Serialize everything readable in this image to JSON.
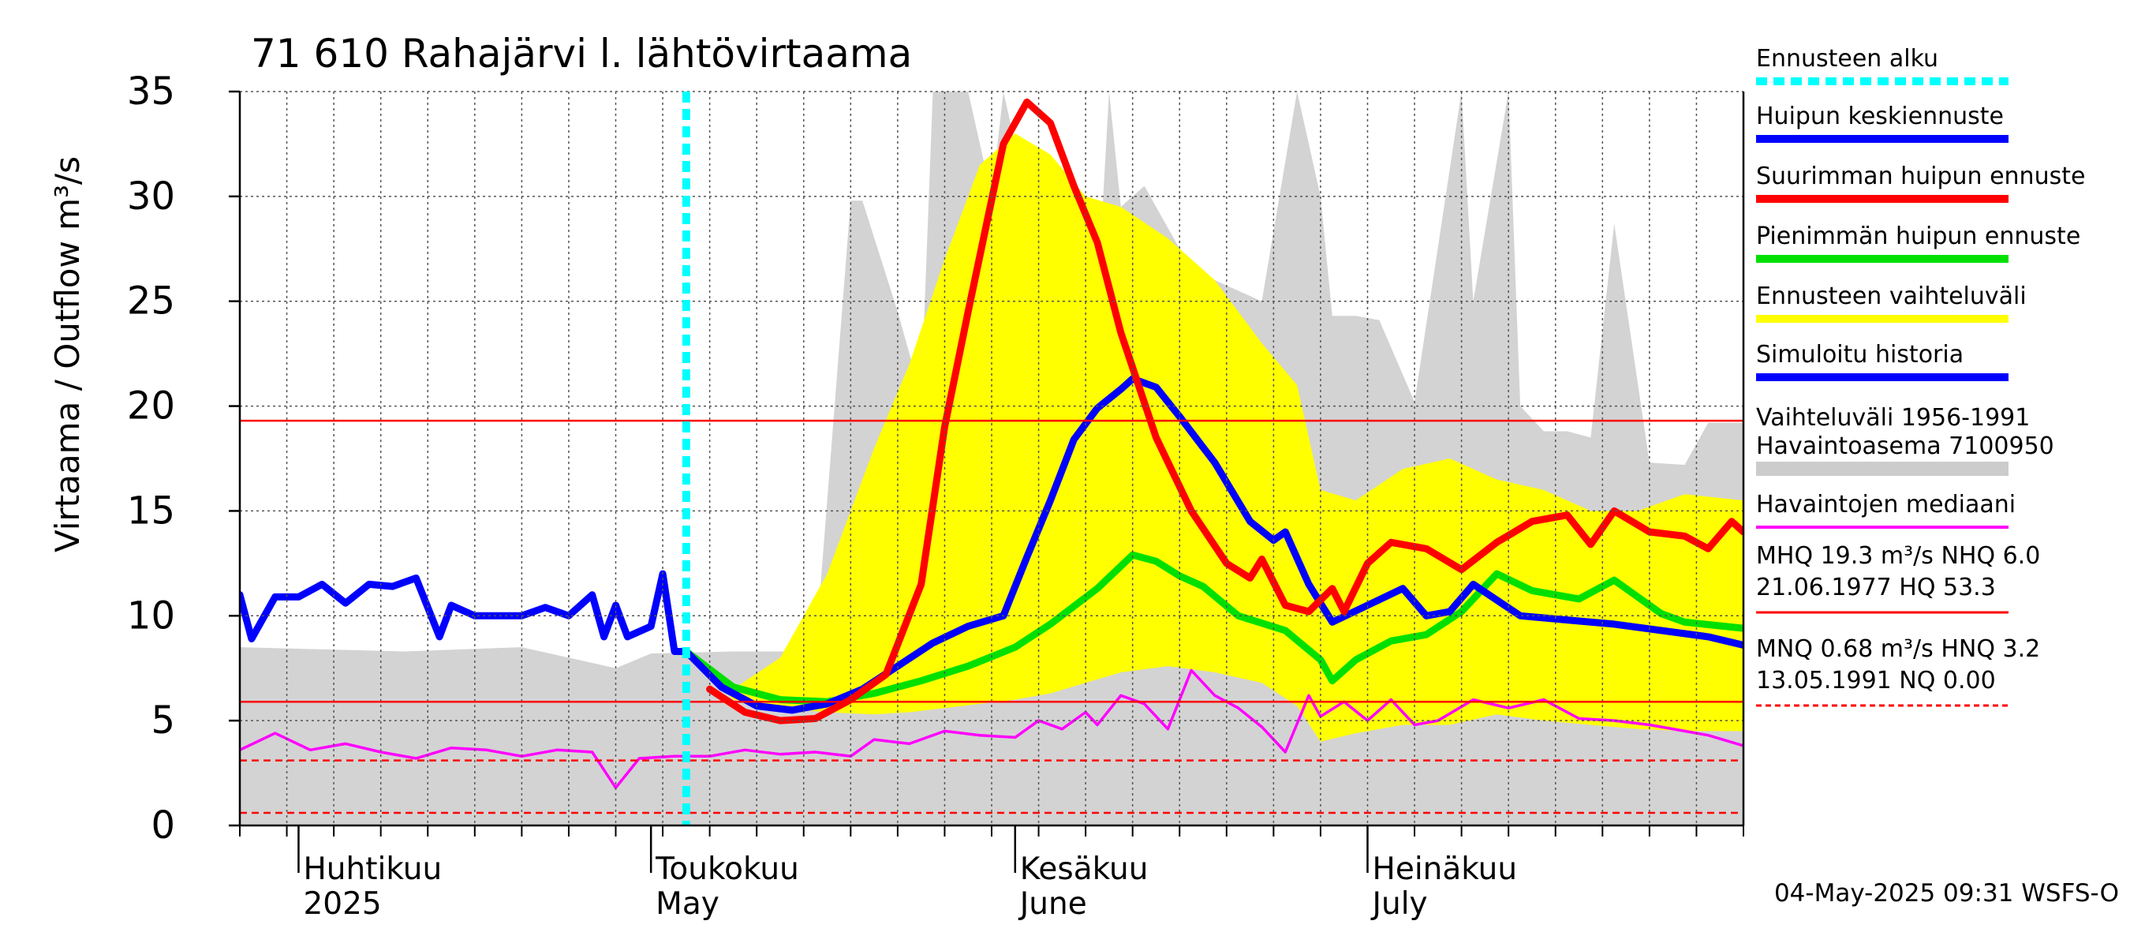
{
  "chart_data": {
    "type": "line",
    "title": "71 610 Rahajärvi l. lähtövirtaama",
    "ylabel": "Virtaama / Outflow    m³/s",
    "ylim": [
      0,
      35
    ],
    "yticks": [
      0,
      5,
      10,
      15,
      20,
      25,
      30,
      35
    ],
    "xlim": [
      "2025-03-27",
      "2025-08-02"
    ],
    "grid": true,
    "legend_position": "right",
    "x_labels": [
      {
        "date": "2025-04-01",
        "fi": "Huhtikuu",
        "en": "2025"
      },
      {
        "date": "2025-05-01",
        "fi": "Toukokuu",
        "en": "May"
      },
      {
        "date": "2025-06-01",
        "fi": "Kesäkuu",
        "en": "June"
      },
      {
        "date": "2025-07-01",
        "fi": "Heinäkuu",
        "en": "July"
      }
    ],
    "forecast_start": "2025-05-04",
    "reference_lines": {
      "MHQ": 19.3,
      "MNQ": 0.68,
      "upper_dashed": 3.1,
      "lower_solid": 5.9,
      "NQ_dashed": 0.6
    },
    "legend": [
      {
        "label": "Ennusteen alku",
        "color": "#00ffff",
        "style": "dashed"
      },
      {
        "label": "Huipun keskiennuste",
        "color": "#0000ff",
        "style": "solid"
      },
      {
        "label": "Suurimman huipun ennuste",
        "color": "#ff0000",
        "style": "solid"
      },
      {
        "label": "Pienimmän huipun ennuste",
        "color": "#00e000",
        "style": "solid"
      },
      {
        "label": "Ennusteen vaihteluväli",
        "color": "#ffff00",
        "style": "solid"
      },
      {
        "label": "Simuloitu historia",
        "color": "#0000ff",
        "style": "solid"
      },
      {
        "label": "Vaihteluväli 1956-1991\n Havaintoasema 7100950",
        "color": "#cccccc",
        "style": "solid"
      },
      {
        "label": "Havaintojen mediaani",
        "color": "#ff00ff",
        "style": "solid"
      }
    ],
    "stats": [
      {
        "line1": "MHQ 19.3 m³/s NHQ  6.0",
        "line2": "21.06.1977 HQ 53.3",
        "color": "#ff0000",
        "style": "solid"
      },
      {
        "line1": "MNQ 0.68 m³/s HNQ  3.2",
        "line2": "13.05.1991 NQ 0.00",
        "color": "#ff0000",
        "style": "dashed"
      }
    ],
    "footer": "04-May-2025 09:31 WSFS-O",
    "series": [
      {
        "name": "Vaihteluväli 1956-1991 Havaintoasema 7100950",
        "kind": "band",
        "color": "#d3d3d3",
        "x": [
          "2025-03-27",
          "2025-04-10",
          "2025-04-20",
          "2025-04-28",
          "2025-05-01",
          "2025-05-08",
          "2025-05-15",
          "2025-05-18",
          "2025-05-19",
          "2025-05-22",
          "2025-05-24",
          "2025-05-25",
          "2025-05-28",
          "2025-05-30",
          "2025-05-31",
          "2025-06-02",
          "2025-06-05",
          "2025-06-08",
          "2025-06-09",
          "2025-06-10",
          "2025-06-12",
          "2025-06-15",
          "2025-06-18",
          "2025-06-22",
          "2025-06-25",
          "2025-06-27",
          "2025-06-28",
          "2025-06-30",
          "2025-07-02",
          "2025-07-05",
          "2025-07-09",
          "2025-07-10",
          "2025-07-13",
          "2025-07-14",
          "2025-07-16",
          "2025-07-18",
          "2025-07-20",
          "2025-07-22",
          "2025-07-25",
          "2025-07-28",
          "2025-07-30",
          "2025-08-02"
        ],
        "high": [
          8.5,
          8.3,
          8.5,
          7.5,
          8.2,
          8.3,
          8.3,
          29.8,
          29.8,
          24.5,
          20.5,
          35,
          35,
          30,
          35,
          30,
          28.5,
          25,
          35,
          29.5,
          30.5,
          27.5,
          26,
          25,
          35,
          30,
          24.3,
          24.3,
          24.1,
          20.2,
          35,
          25,
          35,
          20,
          18.8,
          18.8,
          18.5,
          28.7,
          17.3,
          17.2,
          19.2,
          19.2
        ],
        "low": [
          0,
          0,
          0,
          0,
          0,
          0,
          0,
          0,
          0,
          0,
          0,
          0,
          0,
          0,
          0,
          0,
          0,
          0,
          0,
          0,
          0,
          0,
          0,
          0,
          0,
          0,
          0,
          0,
          0,
          0,
          0,
          0,
          0,
          0,
          0,
          0,
          0,
          0,
          0,
          0,
          0,
          0
        ]
      },
      {
        "name": "Ennusteen vaihteluväli",
        "kind": "band",
        "color": "#ffff00",
        "x": [
          "2025-05-04",
          "2025-05-08",
          "2025-05-12",
          "2025-05-16",
          "2025-05-20",
          "2025-05-23",
          "2025-05-26",
          "2025-05-29",
          "2025-06-01",
          "2025-06-04",
          "2025-06-07",
          "2025-06-10",
          "2025-06-14",
          "2025-06-18",
          "2025-06-22",
          "2025-06-25",
          "2025-06-27",
          "2025-06-30",
          "2025-07-04",
          "2025-07-08",
          "2025-07-12",
          "2025-07-16",
          "2025-07-20",
          "2025-07-24",
          "2025-07-28",
          "2025-08-02"
        ],
        "high": [
          8.3,
          6.5,
          8,
          12,
          18,
          22,
          27,
          31.5,
          33,
          32,
          30,
          29.5,
          28,
          26,
          23,
          21,
          16,
          15.5,
          17,
          17.5,
          16.5,
          16,
          15,
          15,
          15.8,
          15.5
        ],
        "low": [
          8.3,
          6,
          5.6,
          5.4,
          5.3,
          5.4,
          5.6,
          5.8,
          6,
          6.3,
          6.8,
          7.3,
          7.6,
          7.3,
          6.8,
          5.7,
          4,
          4.4,
          4.8,
          4.8,
          5.3,
          5,
          4.8,
          4.6,
          4.5,
          4.5
        ]
      },
      {
        "name": "Havaintojen mediaani",
        "kind": "line",
        "color": "#ff00ff",
        "x": [
          "2025-03-27",
          "2025-03-30",
          "2025-04-02",
          "2025-04-05",
          "2025-04-08",
          "2025-04-11",
          "2025-04-14",
          "2025-04-17",
          "2025-04-20",
          "2025-04-23",
          "2025-04-26",
          "2025-04-28",
          "2025-04-30",
          "2025-05-03",
          "2025-05-06",
          "2025-05-09",
          "2025-05-12",
          "2025-05-15",
          "2025-05-18",
          "2025-05-20",
          "2025-05-23",
          "2025-05-26",
          "2025-05-29",
          "2025-06-01",
          "2025-06-03",
          "2025-06-05",
          "2025-06-07",
          "2025-06-08",
          "2025-06-10",
          "2025-06-12",
          "2025-06-14",
          "2025-06-16",
          "2025-06-18",
          "2025-06-20",
          "2025-06-22",
          "2025-06-24",
          "2025-06-26",
          "2025-06-27",
          "2025-06-29",
          "2025-07-01",
          "2025-07-03",
          "2025-07-05",
          "2025-07-07",
          "2025-07-10",
          "2025-07-13",
          "2025-07-16",
          "2025-07-19",
          "2025-07-22",
          "2025-07-25",
          "2025-07-28",
          "2025-07-30",
          "2025-08-02"
        ],
        "y": [
          3.6,
          4.4,
          3.6,
          3.9,
          3.5,
          3.2,
          3.7,
          3.6,
          3.3,
          3.6,
          3.5,
          1.8,
          3.2,
          3.3,
          3.3,
          3.6,
          3.4,
          3.5,
          3.3,
          4.1,
          3.9,
          4.5,
          4.3,
          4.2,
          5.0,
          4.6,
          5.4,
          4.8,
          6.2,
          5.8,
          4.6,
          7.4,
          6.2,
          5.6,
          4.7,
          3.5,
          6.2,
          5.2,
          5.9,
          5.0,
          6.0,
          4.8,
          5.0,
          6.0,
          5.6,
          6.0,
          5.1,
          5.0,
          4.8,
          4.5,
          4.3,
          3.8
        ]
      },
      {
        "name": "Simuloitu historia",
        "kind": "line",
        "color": "#0000ff",
        "x": [
          "2025-03-27",
          "2025-03-28",
          "2025-03-30",
          "2025-04-01",
          "2025-04-03",
          "2025-04-05",
          "2025-04-07",
          "2025-04-09",
          "2025-04-11",
          "2025-04-13",
          "2025-04-14",
          "2025-04-16",
          "2025-04-18",
          "2025-04-20",
          "2025-04-22",
          "2025-04-24",
          "2025-04-26",
          "2025-04-27",
          "2025-04-28",
          "2025-04-29",
          "2025-05-01",
          "2025-05-02",
          "2025-05-03",
          "2025-05-04"
        ],
        "y": [
          11.0,
          8.9,
          10.9,
          10.9,
          11.5,
          10.6,
          11.5,
          11.4,
          11.8,
          9.0,
          10.5,
          10.0,
          10.0,
          10.0,
          10.4,
          10.0,
          11.0,
          9.0,
          10.5,
          9.0,
          9.5,
          12.0,
          8.3,
          8.3
        ]
      },
      {
        "name": "Pienimmän huipun ennuste",
        "kind": "line",
        "color": "#00e000",
        "x": [
          "2025-05-04",
          "2025-05-08",
          "2025-05-12",
          "2025-05-16",
          "2025-05-20",
          "2025-05-24",
          "2025-05-28",
          "2025-06-01",
          "2025-06-04",
          "2025-06-08",
          "2025-06-11",
          "2025-06-13",
          "2025-06-15",
          "2025-06-17",
          "2025-06-20",
          "2025-06-24",
          "2025-06-27",
          "2025-06-28",
          "2025-06-30",
          "2025-07-03",
          "2025-07-06",
          "2025-07-09",
          "2025-07-12",
          "2025-07-15",
          "2025-07-19",
          "2025-07-22",
          "2025-07-24",
          "2025-07-26",
          "2025-07-28",
          "2025-08-02"
        ],
        "y": [
          8.3,
          6.6,
          6.0,
          5.9,
          6.3,
          6.9,
          7.6,
          8.5,
          9.6,
          11.3,
          12.9,
          12.6,
          11.9,
          11.4,
          10.0,
          9.3,
          7.9,
          6.9,
          7.9,
          8.8,
          9.1,
          10.2,
          12.0,
          11.2,
          10.8,
          11.7,
          10.9,
          10.1,
          9.7,
          9.4
        ]
      },
      {
        "name": "Huipun keskiennuste",
        "kind": "line",
        "color": "#0000ff",
        "x": [
          "2025-05-04",
          "2025-05-07",
          "2025-05-10",
          "2025-05-13",
          "2025-05-16",
          "2025-05-19",
          "2025-05-22",
          "2025-05-25",
          "2025-05-28",
          "2025-05-31",
          "2025-06-02",
          "2025-06-04",
          "2025-06-06",
          "2025-06-08",
          "2025-06-10",
          "2025-06-11",
          "2025-06-13",
          "2025-06-15",
          "2025-06-18",
          "2025-06-21",
          "2025-06-23",
          "2025-06-24",
          "2025-06-26",
          "2025-06-28",
          "2025-07-01",
          "2025-07-04",
          "2025-07-06",
          "2025-07-08",
          "2025-07-10",
          "2025-07-14",
          "2025-07-18",
          "2025-07-22",
          "2025-07-26",
          "2025-07-30",
          "2025-08-02"
        ],
        "y": [
          8.3,
          6.6,
          5.7,
          5.5,
          5.8,
          6.5,
          7.6,
          8.7,
          9.5,
          10.0,
          12.8,
          15.5,
          18.4,
          19.9,
          20.8,
          21.3,
          20.9,
          19.5,
          17.3,
          14.5,
          13.6,
          14.0,
          11.5,
          9.7,
          10.5,
          11.3,
          10.0,
          10.2,
          11.5,
          10.0,
          9.8,
          9.6,
          9.3,
          9.0,
          8.6
        ]
      },
      {
        "name": "Suurimman huipun ennuste",
        "kind": "line",
        "color": "#ff0000",
        "x": [
          "2025-05-06",
          "2025-05-09",
          "2025-05-12",
          "2025-05-15",
          "2025-05-18",
          "2025-05-21",
          "2025-05-24",
          "2025-05-26",
          "2025-05-28",
          "2025-05-31",
          "2025-06-02",
          "2025-06-04",
          "2025-06-06",
          "2025-06-08",
          "2025-06-10",
          "2025-06-13",
          "2025-06-16",
          "2025-06-19",
          "2025-06-21",
          "2025-06-22",
          "2025-06-24",
          "2025-06-26",
          "2025-06-28",
          "2025-06-29",
          "2025-07-01",
          "2025-07-03",
          "2025-07-06",
          "2025-07-09",
          "2025-07-12",
          "2025-07-15",
          "2025-07-18",
          "2025-07-20",
          "2025-07-22",
          "2025-07-25",
          "2025-07-28",
          "2025-07-30",
          "2025-08-01",
          "2025-08-02"
        ],
        "y": [
          6.5,
          5.4,
          5.0,
          5.1,
          6.0,
          7.2,
          11.5,
          19.0,
          24.5,
          32.5,
          34.5,
          33.5,
          30.5,
          27.8,
          23.5,
          18.5,
          15.0,
          12.5,
          11.8,
          12.7,
          10.5,
          10.2,
          11.3,
          10.2,
          12.5,
          13.5,
          13.2,
          12.2,
          13.5,
          14.5,
          14.8,
          13.4,
          15.0,
          14.0,
          13.8,
          13.2,
          14.5,
          14.0
        ]
      }
    ]
  }
}
